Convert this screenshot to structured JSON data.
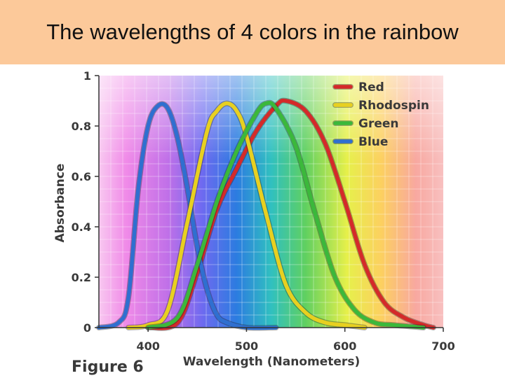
{
  "slide": {
    "title": "The wavelengths of 4 colors in the rainbow",
    "figure_label": "Figure 6"
  },
  "chart_data": {
    "type": "line",
    "title": "",
    "xlabel": "Wavelength (Nanometers)",
    "ylabel": "Absorbance",
    "xlim": [
      350,
      700
    ],
    "ylim": [
      0,
      1
    ],
    "x_ticks": [
      "400",
      "500",
      "600",
      "700"
    ],
    "x_tick_values": [
      400,
      500,
      600,
      700
    ],
    "y_ticks": [
      "0",
      "0.2",
      "0.4",
      "0.6",
      "0.8",
      "1"
    ],
    "y_tick_values": [
      0,
      0.2,
      0.4,
      0.6,
      0.8,
      1
    ],
    "grid": true,
    "legend_position": "top-right",
    "series": [
      {
        "name": "Red",
        "color": "#d42a2a",
        "x": [
          400,
          430,
          450,
          470,
          490,
          510,
          530,
          540,
          560,
          580,
          600,
          620,
          640,
          660,
          680,
          690
        ],
        "y": [
          0.0,
          0.02,
          0.22,
          0.47,
          0.63,
          0.78,
          0.88,
          0.9,
          0.86,
          0.73,
          0.5,
          0.25,
          0.1,
          0.04,
          0.01,
          0.0
        ]
      },
      {
        "name": "Rhodospin",
        "color": "#e8d020",
        "x": [
          380,
          400,
          420,
          440,
          460,
          470,
          480,
          490,
          500,
          520,
          540,
          560,
          580,
          600,
          620
        ],
        "y": [
          0.0,
          0.01,
          0.07,
          0.42,
          0.78,
          0.86,
          0.89,
          0.86,
          0.76,
          0.45,
          0.17,
          0.06,
          0.02,
          0.01,
          0.0
        ]
      },
      {
        "name": "Green",
        "color": "#3bb83b",
        "x": [
          400,
          430,
          450,
          470,
          490,
          510,
          520,
          530,
          550,
          570,
          590,
          610,
          630,
          650,
          680
        ],
        "y": [
          0.0,
          0.04,
          0.25,
          0.5,
          0.7,
          0.85,
          0.89,
          0.87,
          0.72,
          0.45,
          0.2,
          0.07,
          0.02,
          0.01,
          0.0
        ]
      },
      {
        "name": "Blue",
        "color": "#2f6fd0",
        "x": [
          350,
          370,
          380,
          390,
          400,
          410,
          420,
          430,
          440,
          450,
          460,
          470,
          480,
          500,
          530
        ],
        "y": [
          0.0,
          0.02,
          0.12,
          0.55,
          0.8,
          0.88,
          0.87,
          0.75,
          0.55,
          0.32,
          0.15,
          0.05,
          0.02,
          0.0,
          0.0
        ]
      }
    ]
  }
}
